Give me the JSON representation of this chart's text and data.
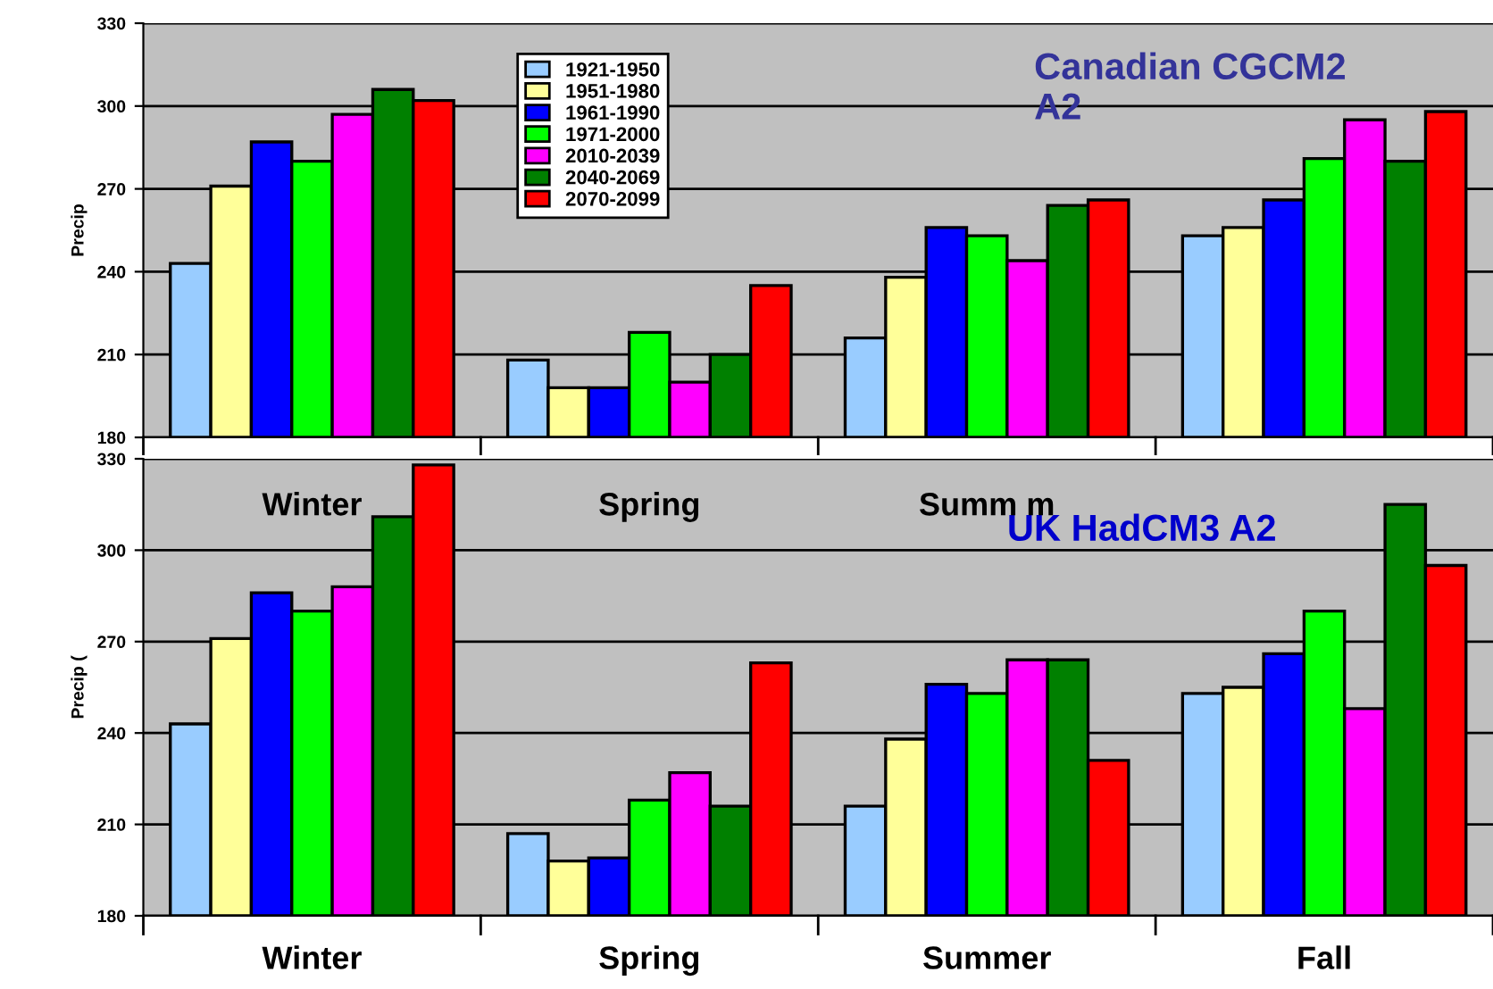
{
  "chart_data": [
    {
      "type": "bar",
      "ylabel": "Precip",
      "categories": [
        "Winter",
        "Spring",
        "Summ m",
        null
      ],
      "ylim": [
        180,
        330
      ],
      "yticks": [
        180,
        210,
        240,
        270,
        300,
        330
      ],
      "grid": "y",
      "legend": "top",
      "annotations": [
        "Canadian CGCM2\nA2"
      ],
      "series": [
        {
          "name": "1921-1950",
          "color": "#99ccff",
          "values": [
            243,
            208,
            216,
            253
          ]
        },
        {
          "name": "1951-1980",
          "color": "#ffff99",
          "values": [
            271,
            198,
            238,
            256
          ]
        },
        {
          "name": "1961-1990",
          "color": "#0000ff",
          "values": [
            287,
            198,
            256,
            266
          ]
        },
        {
          "name": "1971-2000",
          "color": "#00ff00",
          "values": [
            280,
            218,
            253,
            281
          ]
        },
        {
          "name": "2010-2039",
          "color": "#ff00ff",
          "values": [
            297,
            200,
            244,
            295
          ]
        },
        {
          "name": "2040-2069",
          "color": "#008000",
          "values": [
            306,
            210,
            264,
            280
          ]
        },
        {
          "name": "2070-2099",
          "color": "#ff0000",
          "values": [
            302,
            235,
            266,
            298
          ]
        }
      ]
    },
    {
      "type": "bar",
      "ylabel": "Precip (",
      "categories": [
        "Winter",
        "Spring",
        "Summer",
        "Fall"
      ],
      "ylim": [
        180,
        330
      ],
      "yticks": [
        180,
        210,
        240,
        270,
        300,
        330
      ],
      "grid": "y",
      "annotations": [
        "UK HadCM3 A2"
      ],
      "series": [
        {
          "color": "#99ccff",
          "values": [
            243,
            207,
            216,
            253
          ]
        },
        {
          "color": "#ffff99",
          "values": [
            271,
            198,
            238,
            255
          ]
        },
        {
          "color": "#0000ff",
          "values": [
            286,
            199,
            256,
            266
          ]
        },
        {
          "color": "#00ff00",
          "values": [
            280,
            218,
            253,
            280
          ]
        },
        {
          "color": "#ff00ff",
          "values": [
            288,
            227,
            264,
            248
          ]
        },
        {
          "color": "#008000",
          "values": [
            311,
            216,
            264,
            315
          ]
        },
        {
          "color": "#ff0000",
          "values": [
            328,
            263,
            231,
            295
          ]
        }
      ]
    }
  ]
}
